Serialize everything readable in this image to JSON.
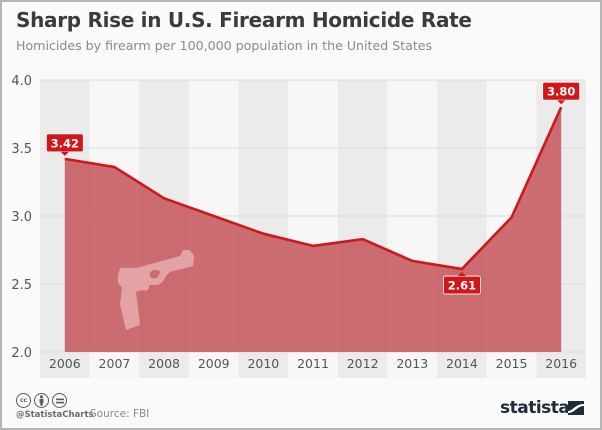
{
  "header": {
    "title": "Sharp Rise in U.S. Firearm Homicide Rate",
    "subtitle": "Homicides by firearm per 100,000 population in the United States"
  },
  "chart_data": {
    "type": "area",
    "title": "Sharp Rise in U.S. Firearm Homicide Rate",
    "subtitle": "Homicides by firearm per 100,000 population in the United States",
    "xlabel": "",
    "ylabel": "",
    "categories": [
      "2006",
      "2007",
      "2008",
      "2009",
      "2010",
      "2011",
      "2012",
      "2013",
      "2014",
      "2015",
      "2016"
    ],
    "series": [
      {
        "name": "Homicides by firearm per 100,000 population",
        "values": [
          3.42,
          3.36,
          3.13,
          3.0,
          2.87,
          2.78,
          2.83,
          2.67,
          2.61,
          2.99,
          3.8
        ]
      }
    ],
    "ylim": [
      2.0,
      4.0
    ],
    "yticks": [
      "2.0",
      "2.5",
      "3.0",
      "3.5",
      "4.0"
    ],
    "ytick_values": [
      2.0,
      2.5,
      3.0,
      3.5,
      4.0
    ],
    "grid": true,
    "annotations": [
      {
        "index": 0,
        "text": "3.42",
        "position": "above"
      },
      {
        "index": 8,
        "text": "2.61",
        "position": "below"
      },
      {
        "index": 10,
        "text": "3.80",
        "position": "above"
      }
    ],
    "colors": {
      "line": "#d0171c",
      "fill": "#c0464c",
      "fill_opacity": 0.78,
      "band_dark": "#ebebeb",
      "band_light": "#f7f7f7",
      "label_bg": "#d0171c",
      "gun": "#e3a3a5"
    },
    "decoration_icon": "pistol-icon"
  },
  "footer": {
    "license_icons": [
      "cc-icon",
      "by-icon",
      "nd-icon"
    ],
    "cc_text": "cc",
    "handle": "@StatistaCharts",
    "source": "Source: FBI",
    "brand": "statista",
    "brand_icon": "statista-logo-icon"
  }
}
